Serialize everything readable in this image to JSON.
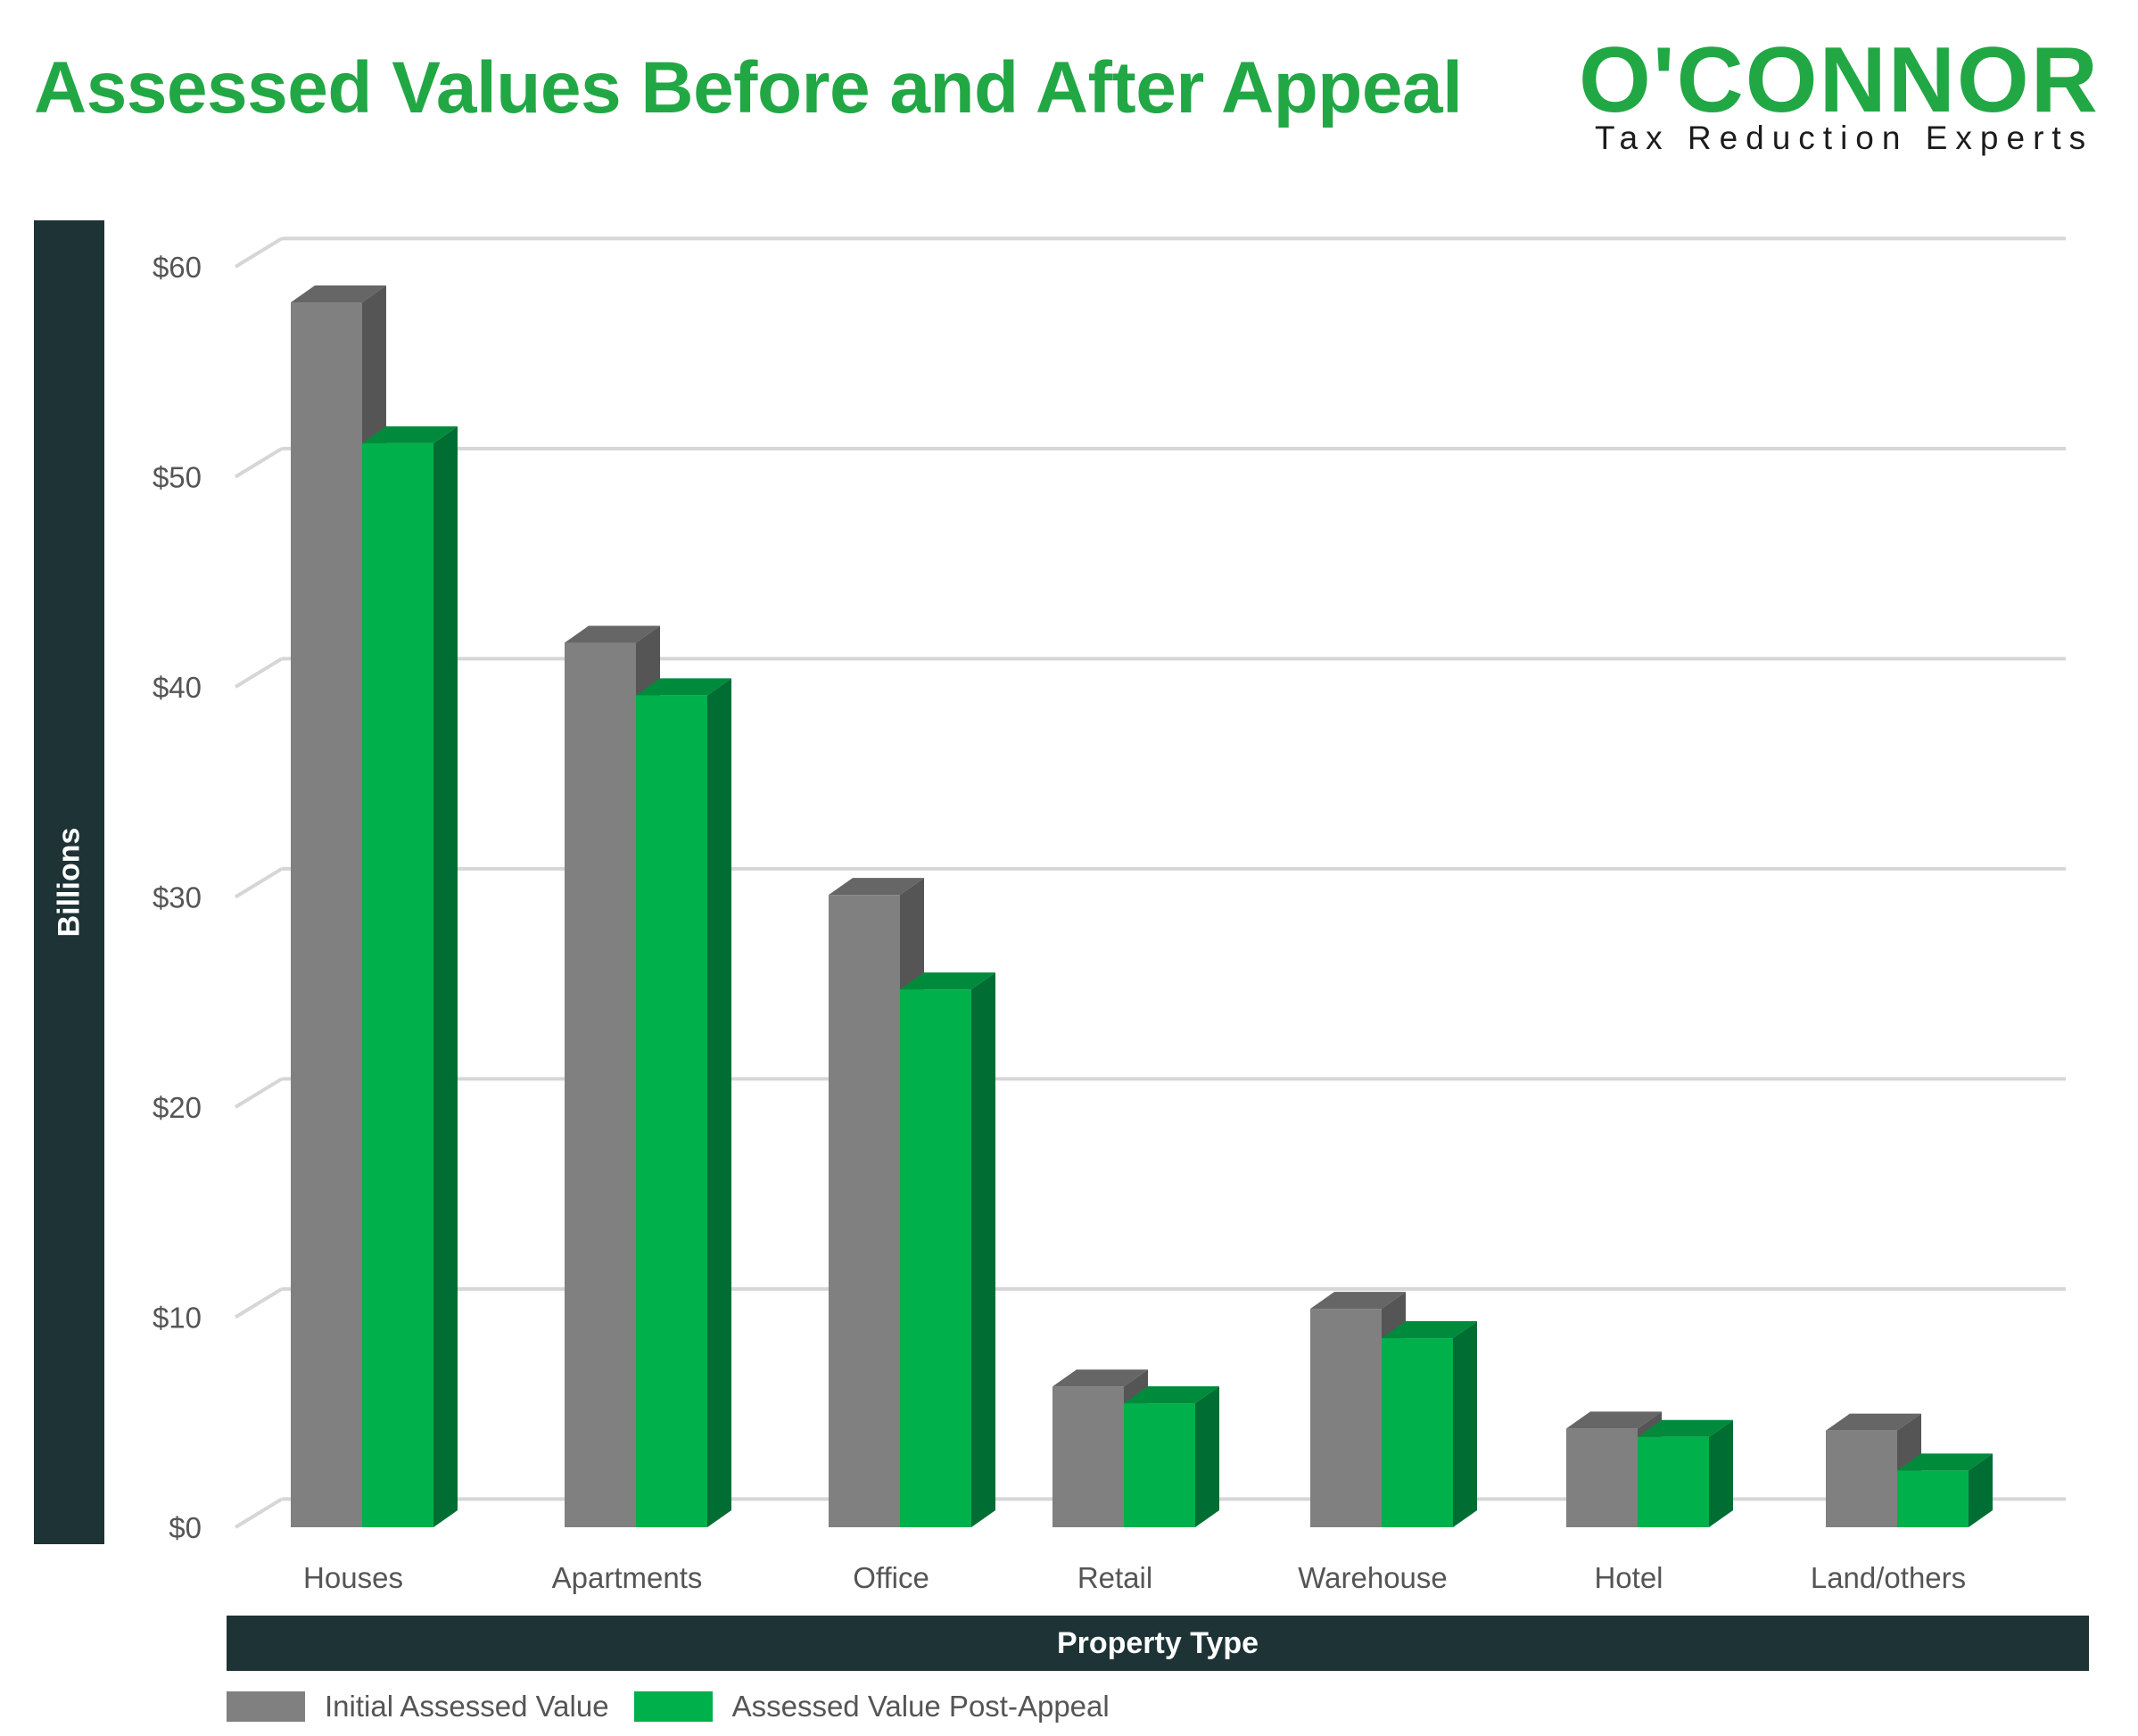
{
  "header": {
    "title": "Assessed Values Before and After Appeal",
    "logo_wordmark": "O'CONNOR",
    "logo_tagline": "Tax Reduction Experts"
  },
  "colors": {
    "title_green": "#22a745",
    "initial_face": "#808080",
    "initial_side": "#555555",
    "post_face": "#00b04b",
    "post_side": "#006e33",
    "axis_box": "#1d3335"
  },
  "chart_data": {
    "type": "bar",
    "title": "Assessed Values Before and After Appeal",
    "xlabel": "Property Type",
    "ylabel": "Billions",
    "categories": [
      "Houses",
      "Apartments",
      "Office",
      "Retail",
      "Warehouse",
      "Hotel",
      "Land/others"
    ],
    "series": [
      {
        "name": "Initial Assessed Value",
        "values": [
          58.3,
          42.1,
          30.1,
          6.7,
          10.4,
          4.7,
          4.6
        ]
      },
      {
        "name": "Assessed Value Post-Appeal",
        "values": [
          51.6,
          39.6,
          25.6,
          5.9,
          9.0,
          4.3,
          2.7
        ]
      }
    ],
    "ylim": [
      0,
      60
    ],
    "yticks": [
      "$0",
      "$10",
      "$20",
      "$30",
      "$40",
      "$50",
      "$60"
    ],
    "grid": true,
    "style": "3d-clustered",
    "legend_position": "bottom-left"
  }
}
